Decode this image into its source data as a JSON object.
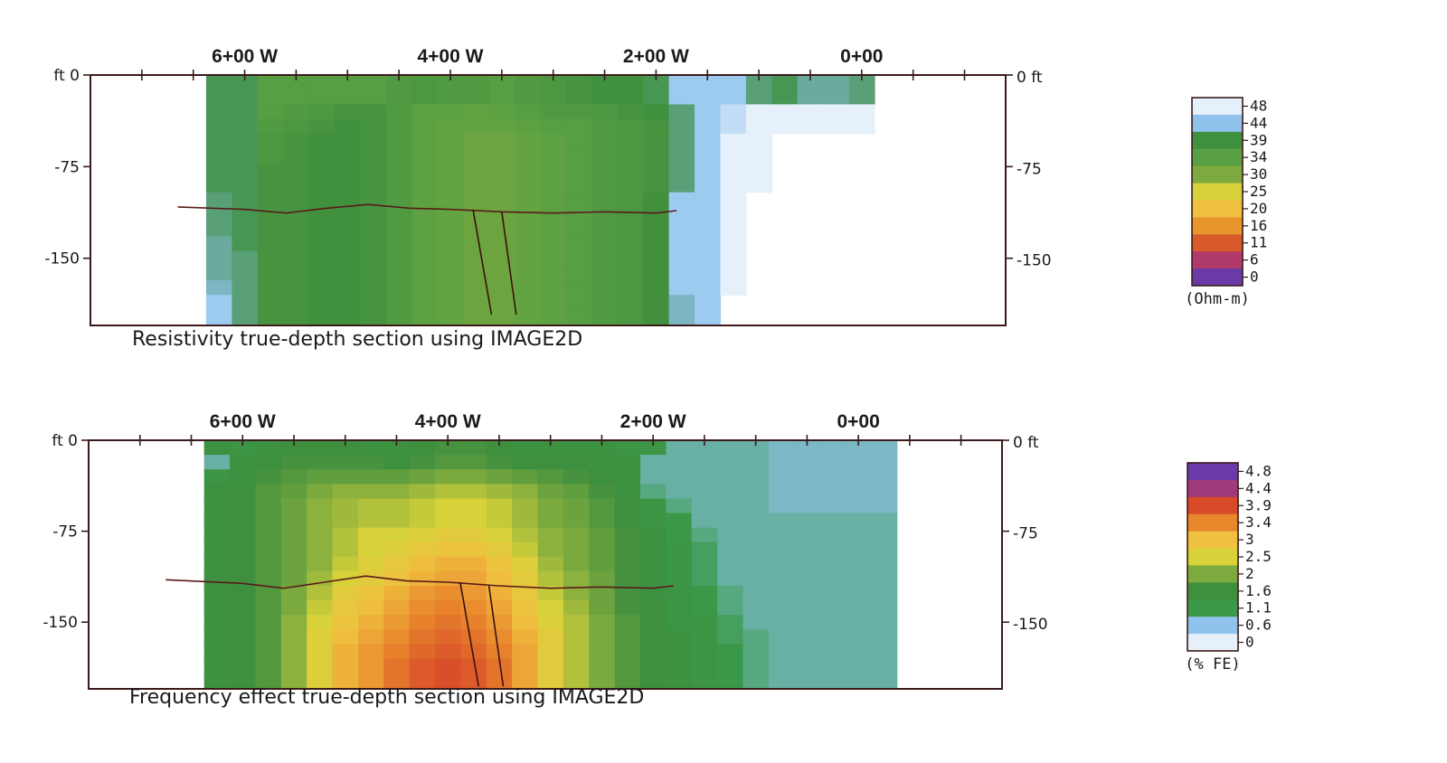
{
  "chart_data": [
    {
      "type": "heatmap",
      "title": "Resistivity true-depth section using IMAGE2D",
      "x_tick_labels": [
        "6+00 W",
        "4+00 W",
        "2+00 W",
        "0+00"
      ],
      "x_tick_values": [
        600,
        400,
        200,
        0
      ],
      "xlim": [
        750,
        -140
      ],
      "ylim": [
        -205,
        0
      ],
      "left_tick_labels": [
        "ft 0",
        "-75",
        "-150"
      ],
      "right_tick_labels": [
        "0 ft",
        "-75",
        "-150"
      ],
      "y_tick_values": [
        0,
        -75,
        -150
      ],
      "colorbar": {
        "unit": "(Ohm-m)",
        "labels": [
          "48",
          "44",
          "39",
          "34",
          "30",
          "25",
          "20",
          "16",
          "11",
          "6",
          "0"
        ],
        "colors": [
          "#e6f0fa",
          "#8fc3ee",
          "#3e8f3e",
          "#58a043",
          "#7daa3e",
          "#d8d23a",
          "#f0c040",
          "#e8962c",
          "#d85a2a",
          "#b03a6a",
          "#6a3aa8"
        ]
      },
      "columns_x": [
        625,
        600,
        575,
        550,
        525,
        500,
        475,
        450,
        425,
        400,
        375,
        350,
        325,
        300,
        275,
        250,
        225,
        200,
        175,
        150,
        125,
        100,
        75,
        50,
        25,
        0,
        -25
      ],
      "rows_y": [
        -6,
        -18,
        -30,
        -42,
        -54,
        -66,
        -78,
        -90,
        -102,
        -114,
        -126,
        -138,
        -150,
        -162,
        -174,
        -186,
        -198
      ],
      "values": [
        [
          39,
          39,
          34,
          34,
          34,
          34,
          34,
          35,
          36,
          35,
          35,
          34,
          35,
          36,
          37,
          38,
          38,
          39,
          44,
          44,
          44,
          40,
          39,
          41,
          41,
          40,
          null
        ],
        [
          39,
          39,
          34,
          34,
          34,
          34,
          34,
          35,
          36,
          35,
          35,
          34,
          35,
          36,
          37,
          38,
          38,
          39,
          44,
          44,
          44,
          40,
          39,
          41,
          41,
          40,
          null
        ],
        [
          39,
          39,
          34,
          35,
          36,
          37,
          37,
          35,
          33,
          33,
          32,
          33,
          34,
          35,
          35,
          36,
          37,
          38,
          40,
          44,
          46,
          48,
          48,
          48,
          48,
          48,
          null
        ],
        [
          39,
          39,
          35,
          36,
          37,
          38,
          37,
          35,
          33,
          32,
          32,
          32,
          33,
          34,
          34,
          35,
          36,
          37,
          40,
          44,
          46,
          48,
          48,
          48,
          48,
          48,
          null
        ],
        [
          39,
          39,
          36,
          37,
          38,
          38,
          37,
          35,
          33,
          32,
          31,
          31,
          32,
          33,
          34,
          35,
          36,
          37,
          40,
          44,
          48,
          48,
          null,
          null,
          null,
          null,
          null
        ],
        [
          39,
          39,
          36,
          37,
          38,
          38,
          37,
          35,
          33,
          32,
          31,
          31,
          32,
          33,
          34,
          35,
          36,
          37,
          40,
          44,
          48,
          48,
          null,
          null,
          null,
          null,
          null
        ],
        [
          39,
          39,
          37,
          37,
          38,
          38,
          37,
          35,
          33,
          32,
          31,
          31,
          32,
          33,
          34,
          35,
          36,
          37,
          40,
          44,
          48,
          48,
          null,
          null,
          null,
          null,
          null
        ],
        [
          39,
          39,
          37,
          37,
          38,
          38,
          37,
          35,
          33,
          32,
          31,
          31,
          32,
          33,
          34,
          35,
          36,
          37,
          40,
          44,
          48,
          48,
          null,
          null,
          null,
          null,
          null
        ],
        [
          40,
          39,
          37,
          37,
          38,
          38,
          37,
          35,
          33,
          32,
          31,
          31,
          32,
          33,
          34,
          35,
          36,
          38,
          44,
          44,
          48,
          null,
          null,
          null,
          null,
          null,
          null
        ],
        [
          40,
          39,
          37,
          37,
          38,
          38,
          37,
          35,
          33,
          32,
          31,
          31,
          32,
          33,
          34,
          35,
          36,
          38,
          44,
          44,
          48,
          null,
          null,
          null,
          null,
          null,
          null
        ],
        [
          40,
          39,
          37,
          37,
          38,
          38,
          37,
          35,
          33,
          32,
          31,
          31,
          32,
          33,
          34,
          35,
          36,
          38,
          44,
          44,
          48,
          null,
          null,
          null,
          null,
          null,
          null
        ],
        [
          41,
          39,
          37,
          37,
          38,
          38,
          37,
          35,
          33,
          32,
          31,
          31,
          32,
          33,
          34,
          35,
          36,
          38,
          44,
          44,
          48,
          null,
          null,
          null,
          null,
          null,
          null
        ],
        [
          41,
          40,
          37,
          37,
          38,
          38,
          37,
          35,
          33,
          32,
          31,
          31,
          32,
          33,
          34,
          35,
          36,
          38,
          44,
          44,
          48,
          null,
          null,
          null,
          null,
          null,
          null
        ],
        [
          41,
          40,
          37,
          37,
          38,
          38,
          37,
          35,
          33,
          32,
          31,
          31,
          32,
          33,
          34,
          35,
          36,
          38,
          44,
          44,
          48,
          null,
          null,
          null,
          null,
          null,
          null
        ],
        [
          42,
          40,
          37,
          37,
          38,
          38,
          37,
          35,
          33,
          32,
          31,
          31,
          32,
          33,
          34,
          35,
          36,
          38,
          44,
          44,
          48,
          null,
          null,
          null,
          null,
          null,
          null
        ],
        [
          44,
          40,
          37,
          37,
          38,
          38,
          37,
          35,
          33,
          32,
          31,
          31,
          32,
          33,
          34,
          35,
          36,
          38,
          42,
          44,
          null,
          null,
          null,
          null,
          null,
          null,
          null
        ],
        [
          44,
          40,
          37,
          37,
          38,
          38,
          37,
          35,
          33,
          32,
          31,
          31,
          32,
          33,
          34,
          35,
          36,
          38,
          42,
          44,
          null,
          null,
          null,
          null,
          null,
          null,
          null
        ]
      ],
      "interface_line": {
        "x": [
          665,
          600,
          560,
          520,
          480,
          440,
          400,
          350,
          300,
          250,
          200,
          180
        ],
        "y": [
          -108,
          -110,
          -113,
          -109,
          -106,
          -109,
          -110,
          -112,
          -113,
          -112,
          -113,
          -111
        ]
      },
      "faults": [
        {
          "x": [
            378,
            360
          ],
          "y": [
            -110,
            -196
          ]
        },
        {
          "x": [
            350,
            336
          ],
          "y": [
            -112,
            -196
          ]
        }
      ]
    },
    {
      "type": "heatmap",
      "title": "Frequency effect true-depth section using IMAGE2D",
      "x_tick_labels": [
        "6+00 W",
        "4+00 W",
        "2+00 W",
        "0+00"
      ],
      "x_tick_values": [
        600,
        400,
        200,
        0
      ],
      "xlim": [
        750,
        -140
      ],
      "ylim": [
        -205,
        0
      ],
      "left_tick_labels": [
        "ft 0",
        "-75",
        "-150"
      ],
      "right_tick_labels": [
        "0 ft",
        "-75",
        "-150"
      ],
      "y_tick_values": [
        0,
        -75,
        -150
      ],
      "colorbar": {
        "unit": "(% FE)",
        "labels": [
          "4.8",
          "4.4",
          "3.9",
          "3.4",
          "3",
          "2.5",
          "2",
          "1.6",
          "1.1",
          "0.6",
          "0"
        ],
        "colors": [
          "#6a3aa8",
          "#a03a7a",
          "#d84a2a",
          "#e8862c",
          "#f0c040",
          "#d8d23a",
          "#7daa3e",
          "#3e8f3e",
          "#3a9a4a",
          "#8fc3ee",
          "#e6f0fa"
        ]
      },
      "columns_x": [
        625,
        600,
        575,
        550,
        525,
        500,
        475,
        450,
        425,
        400,
        375,
        350,
        325,
        300,
        275,
        250,
        225,
        200,
        175,
        150,
        125,
        100,
        75,
        50,
        25,
        0,
        -25
      ],
      "rows_y": [
        -6,
        -18,
        -30,
        -42,
        -54,
        -66,
        -78,
        -90,
        -102,
        -114,
        -126,
        -138,
        -150,
        -162,
        -174,
        -186,
        -198
      ],
      "values": [
        [
          1.3,
          1.2,
          1.3,
          1.4,
          1.4,
          1.4,
          1.3,
          1.3,
          1.4,
          1.5,
          1.5,
          1.4,
          1.3,
          1.3,
          1.3,
          1.3,
          1.2,
          1.2,
          0.7,
          0.7,
          0.7,
          0.7,
          0.6,
          0.6,
          0.6,
          0.6,
          0.6
        ],
        [
          0.7,
          1.3,
          1.4,
          1.5,
          1.5,
          1.5,
          1.5,
          1.4,
          1.5,
          1.6,
          1.6,
          1.5,
          1.4,
          1.4,
          1.4,
          1.3,
          1.3,
          0.7,
          0.7,
          0.7,
          0.7,
          0.7,
          0.6,
          0.6,
          0.6,
          0.6,
          0.6
        ],
        [
          1.2,
          1.3,
          1.5,
          1.6,
          1.7,
          1.7,
          1.7,
          1.7,
          1.8,
          1.9,
          1.9,
          1.8,
          1.7,
          1.6,
          1.5,
          1.4,
          1.3,
          0.7,
          0.7,
          0.7,
          0.7,
          0.7,
          0.6,
          0.6,
          0.6,
          0.6,
          0.6
        ],
        [
          1.3,
          1.4,
          1.6,
          1.7,
          1.9,
          2.0,
          2.0,
          2.0,
          2.1,
          2.2,
          2.2,
          2.1,
          2.0,
          1.8,
          1.7,
          1.5,
          1.3,
          0.8,
          0.7,
          0.7,
          0.7,
          0.7,
          0.6,
          0.6,
          0.6,
          0.6,
          0.6
        ],
        [
          1.3,
          1.4,
          1.6,
          1.8,
          2.0,
          2.1,
          2.2,
          2.2,
          2.3,
          2.4,
          2.4,
          2.3,
          2.1,
          1.9,
          1.8,
          1.6,
          1.4,
          1.2,
          0.8,
          0.7,
          0.7,
          0.7,
          0.6,
          0.6,
          0.6,
          0.6,
          0.6
        ],
        [
          1.3,
          1.4,
          1.6,
          1.8,
          2.0,
          2.1,
          2.2,
          2.2,
          2.3,
          2.4,
          2.4,
          2.3,
          2.1,
          1.9,
          1.8,
          1.6,
          1.4,
          1.2,
          1.0,
          0.7,
          0.7,
          0.7,
          0.7,
          0.7,
          0.7,
          0.7,
          0.7
        ],
        [
          1.3,
          1.4,
          1.6,
          1.8,
          2.0,
          2.2,
          2.4,
          2.4,
          2.5,
          2.6,
          2.6,
          2.4,
          2.2,
          2.0,
          1.9,
          1.7,
          1.5,
          1.3,
          1.0,
          0.8,
          0.7,
          0.7,
          0.7,
          0.7,
          0.7,
          0.7,
          0.7
        ],
        [
          1.3,
          1.4,
          1.6,
          1.8,
          2.0,
          2.2,
          2.4,
          2.5,
          2.7,
          2.8,
          2.8,
          2.6,
          2.3,
          2.0,
          1.9,
          1.7,
          1.5,
          1.3,
          1.1,
          0.9,
          0.7,
          0.7,
          0.7,
          0.7,
          0.7,
          0.7,
          0.7
        ],
        [
          1.3,
          1.4,
          1.6,
          1.8,
          2.0,
          2.3,
          2.5,
          2.7,
          2.9,
          3.0,
          3.0,
          2.8,
          2.5,
          2.1,
          1.9,
          1.7,
          1.5,
          1.3,
          1.1,
          0.9,
          0.7,
          0.7,
          0.7,
          0.7,
          0.7,
          0.7,
          0.7
        ],
        [
          1.3,
          1.4,
          1.6,
          1.8,
          2.1,
          2.4,
          2.6,
          2.8,
          3.0,
          3.1,
          3.1,
          2.9,
          2.6,
          2.2,
          2.0,
          1.8,
          1.5,
          1.3,
          1.1,
          0.9,
          0.7,
          0.7,
          0.7,
          0.7,
          0.7,
          0.7,
          0.7
        ],
        [
          1.3,
          1.4,
          1.6,
          1.9,
          2.2,
          2.6,
          2.8,
          3.0,
          3.2,
          3.3,
          3.2,
          3.0,
          2.7,
          2.3,
          2.0,
          1.8,
          1.5,
          1.3,
          1.2,
          1.0,
          0.8,
          0.7,
          0.7,
          0.7,
          0.7,
          0.7,
          0.7
        ],
        [
          1.3,
          1.4,
          1.6,
          1.9,
          2.3,
          2.7,
          2.9,
          3.1,
          3.3,
          3.4,
          3.3,
          3.1,
          2.8,
          2.4,
          2.1,
          1.8,
          1.5,
          1.4,
          1.2,
          1.0,
          0.8,
          0.7,
          0.7,
          0.7,
          0.7,
          0.7,
          0.7
        ],
        [
          1.3,
          1.4,
          1.6,
          2.0,
          2.4,
          2.8,
          3.0,
          3.2,
          3.4,
          3.5,
          3.4,
          3.2,
          2.9,
          2.5,
          2.2,
          1.9,
          1.6,
          1.4,
          1.2,
          1.1,
          0.9,
          0.7,
          0.7,
          0.7,
          0.7,
          0.7,
          0.7
        ],
        [
          1.3,
          1.4,
          1.6,
          2.0,
          2.5,
          2.9,
          3.1,
          3.3,
          3.5,
          3.6,
          3.5,
          3.3,
          3.0,
          2.6,
          2.2,
          1.9,
          1.6,
          1.4,
          1.3,
          1.1,
          0.9,
          0.8,
          0.7,
          0.7,
          0.7,
          0.7,
          0.7
        ],
        [
          1.3,
          1.4,
          1.6,
          2.0,
          2.5,
          3.0,
          3.2,
          3.4,
          3.6,
          3.7,
          3.6,
          3.4,
          3.1,
          2.6,
          2.2,
          1.9,
          1.6,
          1.4,
          1.3,
          1.2,
          1.0,
          0.8,
          0.7,
          0.7,
          0.7,
          0.7,
          0.7
        ],
        [
          1.3,
          1.4,
          1.6,
          2.0,
          2.5,
          3.0,
          3.2,
          3.5,
          3.7,
          3.8,
          3.7,
          3.5,
          3.1,
          2.6,
          2.2,
          1.9,
          1.6,
          1.4,
          1.3,
          1.2,
          1.0,
          0.8,
          0.7,
          0.7,
          0.7,
          0.7,
          0.7
        ],
        [
          1.3,
          1.4,
          1.6,
          2.0,
          2.5,
          3.0,
          3.2,
          3.5,
          3.7,
          3.8,
          3.7,
          3.5,
          3.1,
          2.6,
          2.2,
          1.9,
          1.6,
          1.4,
          1.3,
          1.2,
          1.0,
          0.8,
          0.7,
          0.7,
          0.7,
          0.7,
          0.7
        ]
      ],
      "interface_line": {
        "x": [
          675,
          600,
          560,
          520,
          480,
          440,
          400,
          350,
          300,
          250,
          200,
          180
        ],
        "y": [
          -115,
          -118,
          -122,
          -117,
          -112,
          -116,
          -117,
          -120,
          -122,
          -121,
          -122,
          -120
        ]
      },
      "faults": [
        {
          "x": [
            388,
            370
          ],
          "y": [
            -117,
            -203
          ]
        },
        {
          "x": [
            360,
            346
          ],
          "y": [
            -120,
            -203
          ]
        }
      ]
    }
  ]
}
